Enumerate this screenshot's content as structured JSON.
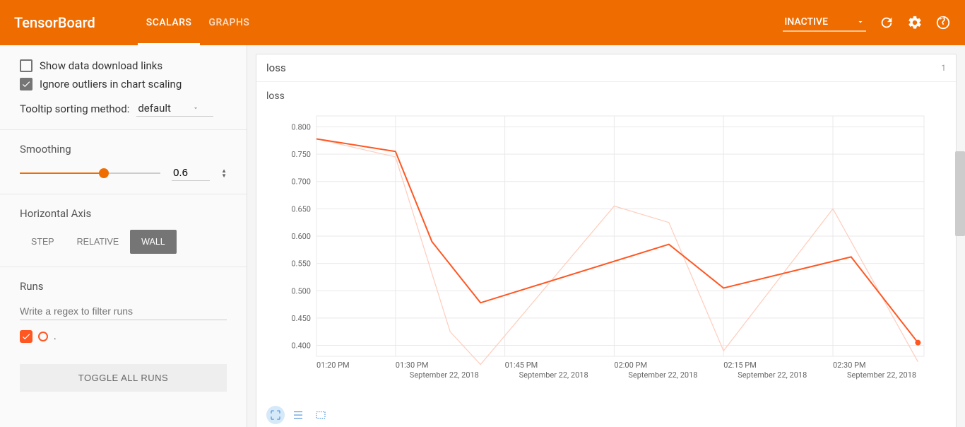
{
  "header": {
    "logo": "TensorBoard",
    "tabs": [
      {
        "id": "scalars",
        "label": "SCALARS",
        "active": true
      },
      {
        "id": "graphs",
        "label": "GRAPHS",
        "active": false
      }
    ],
    "dropdown_label": "INACTIVE"
  },
  "sidebar": {
    "checkboxes": {
      "download_links": {
        "label": "Show data download links",
        "checked": false
      },
      "ignore_outliers": {
        "label": "Ignore outliers in chart scaling",
        "checked": true
      }
    },
    "tooltip_sort": {
      "label": "Tooltip sorting method:",
      "value": "default"
    },
    "smoothing": {
      "label": "Smoothing",
      "value": "0.6",
      "percent": 60
    },
    "horizontal_axis": {
      "label": "Horizontal Axis",
      "options": [
        "STEP",
        "RELATIVE",
        "WALL"
      ],
      "active": "WALL"
    },
    "runs": {
      "label": "Runs",
      "filter_placeholder": "Write a regex to filter runs",
      "run_label": ".",
      "toggle_all": "TOGGLE ALL RUNS"
    }
  },
  "chart": {
    "card_title": "loss",
    "card_count": "1",
    "title": "loss",
    "type": "line",
    "colors": {
      "background": "#ffffff",
      "grid": "#e9e9e9",
      "axis_text": "#666666",
      "main_line": "#ff5722",
      "faded_line": "#ffccbc",
      "point": "#ff5722"
    },
    "line_width_main": 2,
    "line_width_faded": 1.2,
    "y_axis": {
      "min": 0.38,
      "max": 0.82,
      "ticks": [
        "0.400",
        "0.450",
        "0.500",
        "0.550",
        "0.600",
        "0.650",
        "0.700",
        "0.750",
        "0.800"
      ]
    },
    "x_axis": {
      "ticks": [
        {
          "time": "01:20 PM",
          "date": ""
        },
        {
          "time": "01:30 PM",
          "date": "September 22, 2018"
        },
        {
          "time": "01:45 PM",
          "date": "September 22, 2018"
        },
        {
          "time": "02:00 PM",
          "date": "September 22, 2018"
        },
        {
          "time": "02:15 PM",
          "date": "September 22, 2018"
        },
        {
          "time": "02:30 PM",
          "date": "September 22, 2018"
        }
      ],
      "positions": [
        0,
        0.13,
        0.31,
        0.49,
        0.67,
        0.85
      ]
    },
    "series_main": [
      {
        "x": 0.0,
        "y": 0.778
      },
      {
        "x": 0.13,
        "y": 0.755
      },
      {
        "x": 0.19,
        "y": 0.59
      },
      {
        "x": 0.27,
        "y": 0.478
      },
      {
        "x": 0.58,
        "y": 0.585
      },
      {
        "x": 0.67,
        "y": 0.505
      },
      {
        "x": 0.88,
        "y": 0.562
      },
      {
        "x": 0.99,
        "y": 0.405
      }
    ],
    "series_faded": [
      {
        "x": 0.0,
        "y": 0.778
      },
      {
        "x": 0.13,
        "y": 0.745
      },
      {
        "x": 0.22,
        "y": 0.425
      },
      {
        "x": 0.27,
        "y": 0.365
      },
      {
        "x": 0.49,
        "y": 0.655
      },
      {
        "x": 0.58,
        "y": 0.625
      },
      {
        "x": 0.67,
        "y": 0.39
      },
      {
        "x": 0.85,
        "y": 0.65
      },
      {
        "x": 0.99,
        "y": 0.37
      }
    ]
  }
}
